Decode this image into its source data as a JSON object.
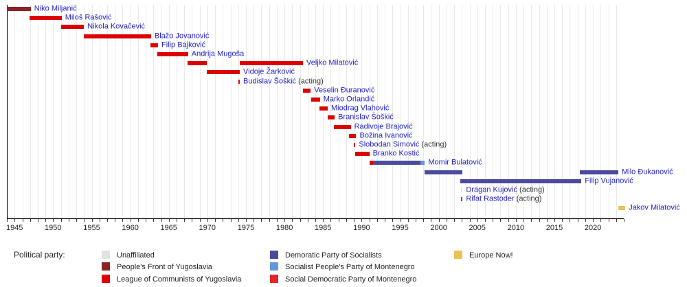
{
  "chart_data": {
    "type": "timeline",
    "description": "Timeline of heads of state of Montenegro colored by political party",
    "axis": {
      "start_year": 1944,
      "end_year": 2024,
      "tick_interval_years": 1,
      "label_years": [
        1945,
        1950,
        1955,
        1960,
        1965,
        1970,
        1975,
        1980,
        1985,
        1990,
        1995,
        2000,
        2005,
        2010,
        2015,
        2020
      ]
    },
    "parties": {
      "unaffiliated": {
        "label": "Unaffiliated",
        "color": "#e2e2e2"
      },
      "pfy": {
        "label": "People's Front of Yugoslavia",
        "color": "#8b2227"
      },
      "lcy": {
        "label": "League of Communists of Yugoslavia",
        "color": "#dd0000"
      },
      "dps": {
        "label": "Demoratic Party of Socialists",
        "color": "#4b4a9c"
      },
      "snp": {
        "label": "Socialist People's Party of Montenegro",
        "color": "#6495df"
      },
      "sdp": {
        "label": "Social Democratic Party of Montenegro",
        "color": "#e7232b"
      },
      "europe_now": {
        "label": "Europe Now!",
        "color": "#ecc257"
      }
    },
    "people": [
      {
        "name": "Niko Miljanić",
        "suffix": "",
        "segments": [
          {
            "start": 1944.0,
            "end": 1947.1,
            "party": "pfy"
          }
        ]
      },
      {
        "name": "Miloš Rašović",
        "suffix": "",
        "segments": [
          {
            "start": 1946.9,
            "end": 1951.1,
            "party": "lcy"
          }
        ]
      },
      {
        "name": "Nikola Kovačević",
        "suffix": "",
        "segments": [
          {
            "start": 1951.0,
            "end": 1954.0,
            "party": "lcy"
          }
        ]
      },
      {
        "name": "Blažo Jovanović",
        "suffix": "",
        "segments": [
          {
            "start": 1954.0,
            "end": 1962.7,
            "party": "lcy"
          }
        ]
      },
      {
        "name": "Filip Bajković",
        "suffix": "",
        "segments": [
          {
            "start": 1962.6,
            "end": 1963.6,
            "party": "lcy"
          }
        ]
      },
      {
        "name": "Andrija Mugoša",
        "suffix": "",
        "segments": [
          {
            "start": 1963.5,
            "end": 1967.5,
            "party": "lcy"
          }
        ]
      },
      {
        "name": "Veljko Milatović",
        "suffix": "",
        "segments": [
          {
            "start": 1967.4,
            "end": 1969.9,
            "party": "lcy"
          },
          {
            "start": 1974.2,
            "end": 1982.4,
            "party": "lcy"
          }
        ]
      },
      {
        "name": "Vidoje Žarković",
        "suffix": "",
        "segments": [
          {
            "start": 1969.9,
            "end": 1974.2,
            "party": "lcy"
          }
        ]
      },
      {
        "name": "Budislav Šoškić",
        "suffix": " (acting)",
        "segments": [
          {
            "start": 1974.0,
            "end": 1974.2,
            "party": "lcy"
          }
        ]
      },
      {
        "name": "Veselin Đuranović",
        "suffix": "",
        "segments": [
          {
            "start": 1982.4,
            "end": 1983.4,
            "party": "lcy"
          }
        ]
      },
      {
        "name": "Marko Orlandić",
        "suffix": "",
        "segments": [
          {
            "start": 1983.5,
            "end": 1984.6,
            "party": "lcy"
          }
        ]
      },
      {
        "name": "Miodrag Vlahović",
        "suffix": "",
        "segments": [
          {
            "start": 1984.5,
            "end": 1985.6,
            "party": "lcy"
          }
        ]
      },
      {
        "name": "Branislav Šoškić",
        "suffix": "",
        "segments": [
          {
            "start": 1985.6,
            "end": 1986.5,
            "party": "lcy"
          }
        ]
      },
      {
        "name": "Radivoje Brajović",
        "suffix": "",
        "segments": [
          {
            "start": 1986.4,
            "end": 1988.6,
            "party": "lcy"
          }
        ]
      },
      {
        "name": "Božina Ivanović",
        "suffix": "",
        "segments": [
          {
            "start": 1988.4,
            "end": 1989.3,
            "party": "lcy"
          }
        ]
      },
      {
        "name": "Slobodan Simović",
        "suffix": " (acting)",
        "segments": [
          {
            "start": 1989.0,
            "end": 1989.2,
            "party": "lcy"
          }
        ]
      },
      {
        "name": "Branko Kostić",
        "suffix": "",
        "segments": [
          {
            "start": 1989.2,
            "end": 1991.0,
            "party": "lcy"
          }
        ]
      },
      {
        "name": "Momir Bulatović",
        "suffix": "",
        "segments": [
          {
            "start": 1991.0,
            "end": 1991.5,
            "party": "lcy"
          },
          {
            "start": 1991.5,
            "end": 1997.6,
            "party": "dps"
          },
          {
            "start": 1997.6,
            "end": 1998.2,
            "party": "snp"
          }
        ]
      },
      {
        "name": "Milo Đukanović",
        "suffix": "",
        "segments": [
          {
            "start": 1998.2,
            "end": 2003.1,
            "party": "dps"
          },
          {
            "start": 2018.3,
            "end": 2023.3,
            "party": "dps"
          }
        ]
      },
      {
        "name": "Filip Vujanović",
        "suffix": "",
        "segments": [
          {
            "start": 2002.8,
            "end": 2018.5,
            "party": "dps"
          }
        ]
      },
      {
        "name": "Dragan Kujović",
        "suffix": " (acting)",
        "segments": [
          {
            "start": 2002.9,
            "end": 2003.1,
            "party": "unaffiliated"
          }
        ]
      },
      {
        "name": "Rifat Rastoder",
        "suffix": " (acting)",
        "segments": [
          {
            "start": 2002.9,
            "end": 2003.1,
            "party": "sdp"
          }
        ]
      },
      {
        "name": "Jakov Milatović",
        "suffix": "",
        "segments": [
          {
            "start": 2023.3,
            "end": 2024.2,
            "party": "europe_now"
          }
        ]
      }
    ]
  },
  "legend": {
    "title": "Political party:",
    "columns": [
      [
        "unaffiliated",
        "pfy",
        "lcy"
      ],
      [
        "dps",
        "snp",
        "sdp"
      ],
      [
        "europe_now"
      ]
    ]
  }
}
